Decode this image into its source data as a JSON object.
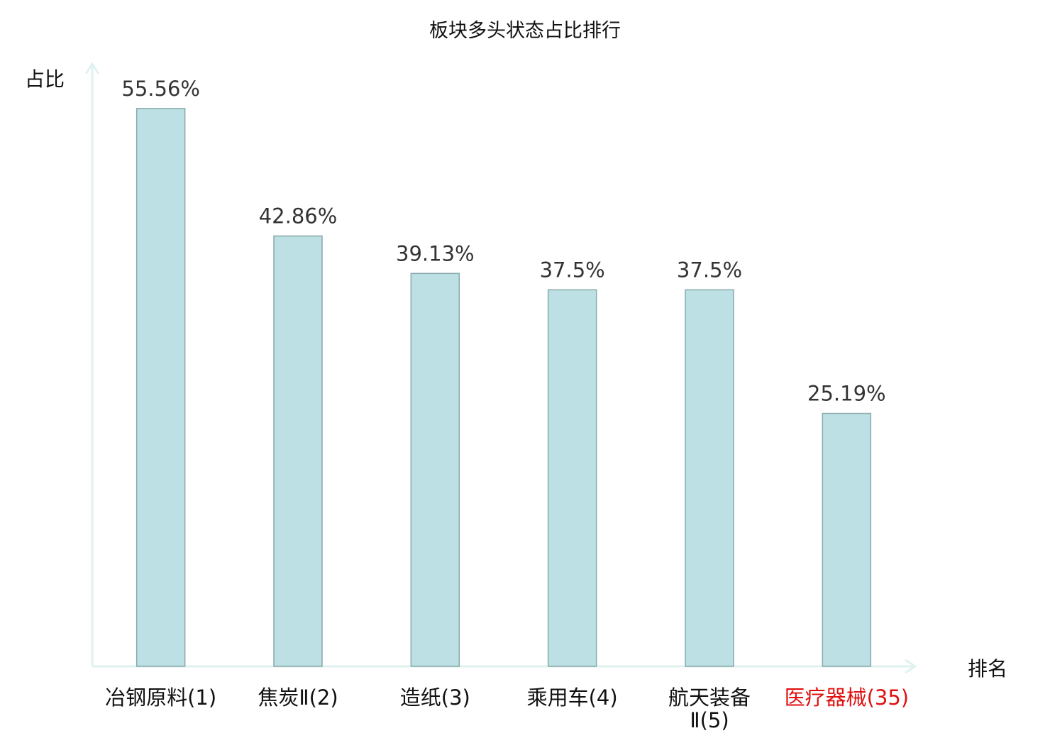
{
  "chart_data": {
    "type": "bar",
    "title": "板块多头状态占比排行",
    "ylabel": "占比",
    "xlabel": "排名",
    "categories": [
      "冶钢原料(1)",
      "焦炭Ⅱ(2)",
      "造纸(3)",
      "乘用车(4)",
      "航天装备Ⅱ(5)",
      "医疗器械(35)"
    ],
    "tick_lines": [
      [
        "冶钢原料(1)"
      ],
      [
        "焦炭Ⅱ(2)"
      ],
      [
        "造纸(3)"
      ],
      [
        "乘用车(4)"
      ],
      [
        "航天装备",
        "Ⅱ(5)"
      ],
      [
        "医疗器械(35)"
      ]
    ],
    "values": [
      55.56,
      42.86,
      39.13,
      37.5,
      37.5,
      25.19
    ],
    "data_labels": [
      "55.56%",
      "42.86%",
      "39.13%",
      "37.5%",
      "37.5%",
      "25.19%"
    ],
    "highlight_index": 5,
    "ylim": [
      0,
      60
    ],
    "grid": false,
    "colors": {
      "bar_fill": "#bce0e3",
      "bar_stroke": "#8aa9aa",
      "axis": "#dff2ef",
      "highlight_label": "#e01010",
      "label": "#111111"
    }
  }
}
